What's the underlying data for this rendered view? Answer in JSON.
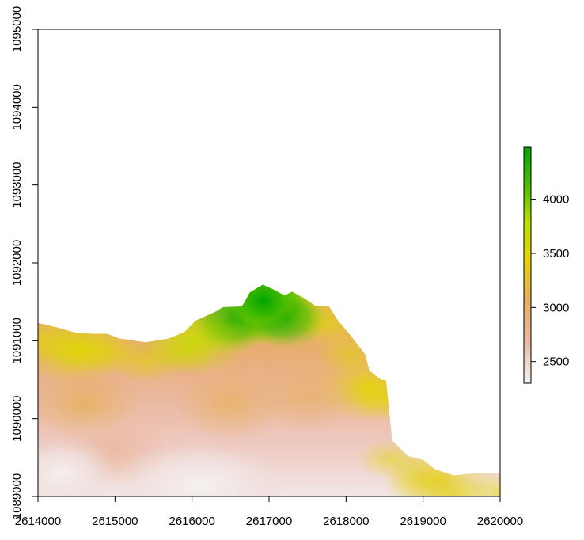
{
  "chart_data": {
    "type": "heatmap",
    "title": "",
    "xlabel": "",
    "ylabel": "",
    "xlim": [
      2614000,
      2620000
    ],
    "ylim": [
      1089000,
      1095000
    ],
    "x_ticks": [
      2614000,
      2615000,
      2616000,
      2617000,
      2618000,
      2619000,
      2620000
    ],
    "y_ticks": [
      1089000,
      1090000,
      1091000,
      1092000,
      1093000,
      1094000,
      1095000
    ],
    "x_tick_labels": [
      "2614000",
      "2615000",
      "2616000",
      "2617000",
      "2618000",
      "2619000",
      "2620000"
    ],
    "y_tick_labels": [
      "1089000",
      "1090000",
      "1091000",
      "1092000",
      "1093000",
      "1094000",
      "1095000"
    ],
    "colorbar": {
      "min": 2300,
      "max": 4480,
      "ticks": [
        2500,
        3000,
        3500,
        4000
      ],
      "tick_labels": [
        "2500",
        "3000",
        "3500",
        "4000"
      ],
      "colors": [
        {
          "value": 2300,
          "color": "#f2f2f2"
        },
        {
          "value": 2700,
          "color": "#ebb8a4"
        },
        {
          "value": 3100,
          "color": "#e5b05a"
        },
        {
          "value": 3450,
          "color": "#e3d800"
        },
        {
          "value": 3800,
          "color": "#b8df00"
        },
        {
          "value": 4100,
          "color": "#55c000"
        },
        {
          "value": 4480,
          "color": "#00a600"
        }
      ]
    },
    "no_data_region": "above the top boundary of the elevation raster",
    "raster_top_boundary": [
      {
        "x": 2614000,
        "y": 1091230
      },
      {
        "x": 2614250,
        "y": 1091170
      },
      {
        "x": 2614500,
        "y": 1091100
      },
      {
        "x": 2614700,
        "y": 1091090
      },
      {
        "x": 2614900,
        "y": 1091090
      },
      {
        "x": 2615050,
        "y": 1091030
      },
      {
        "x": 2615400,
        "y": 1090980
      },
      {
        "x": 2615700,
        "y": 1091030
      },
      {
        "x": 2615900,
        "y": 1091110
      },
      {
        "x": 2616050,
        "y": 1091260
      },
      {
        "x": 2616300,
        "y": 1091370
      },
      {
        "x": 2616400,
        "y": 1091430
      },
      {
        "x": 2616650,
        "y": 1091440
      },
      {
        "x": 2616750,
        "y": 1091620
      },
      {
        "x": 2616920,
        "y": 1091720
      },
      {
        "x": 2617050,
        "y": 1091660
      },
      {
        "x": 2617200,
        "y": 1091580
      },
      {
        "x": 2617300,
        "y": 1091630
      },
      {
        "x": 2617450,
        "y": 1091550
      },
      {
        "x": 2617600,
        "y": 1091450
      },
      {
        "x": 2617780,
        "y": 1091440
      },
      {
        "x": 2617900,
        "y": 1091250
      },
      {
        "x": 2618050,
        "y": 1091080
      },
      {
        "x": 2618250,
        "y": 1090820
      },
      {
        "x": 2618300,
        "y": 1090620
      },
      {
        "x": 2618450,
        "y": 1090500
      },
      {
        "x": 2618520,
        "y": 1090490
      },
      {
        "x": 2618550,
        "y": 1090180
      },
      {
        "x": 2618600,
        "y": 1089720
      },
      {
        "x": 2618800,
        "y": 1089520
      },
      {
        "x": 2619000,
        "y": 1089470
      },
      {
        "x": 2619150,
        "y": 1089350
      },
      {
        "x": 2619400,
        "y": 1089270
      },
      {
        "x": 2619700,
        "y": 1089300
      },
      {
        "x": 2620000,
        "y": 1089300
      }
    ],
    "elevation_samples": [
      {
        "x": 2616920,
        "y": 1091550,
        "value": 4450
      },
      {
        "x": 2616500,
        "y": 1091250,
        "value": 4100
      },
      {
        "x": 2617200,
        "y": 1091300,
        "value": 4000
      },
      {
        "x": 2616000,
        "y": 1091000,
        "value": 3700
      },
      {
        "x": 2614500,
        "y": 1090900,
        "value": 3500
      },
      {
        "x": 2618300,
        "y": 1090400,
        "value": 3400
      },
      {
        "x": 2619200,
        "y": 1089200,
        "value": 3350
      },
      {
        "x": 2614600,
        "y": 1090200,
        "value": 3100
      },
      {
        "x": 2616500,
        "y": 1090200,
        "value": 3050
      },
      {
        "x": 2617500,
        "y": 1090300,
        "value": 3000
      },
      {
        "x": 2615000,
        "y": 1089600,
        "value": 2750
      },
      {
        "x": 2614300,
        "y": 1089300,
        "value": 2550
      },
      {
        "x": 2616100,
        "y": 1089150,
        "value": 2350
      }
    ]
  }
}
